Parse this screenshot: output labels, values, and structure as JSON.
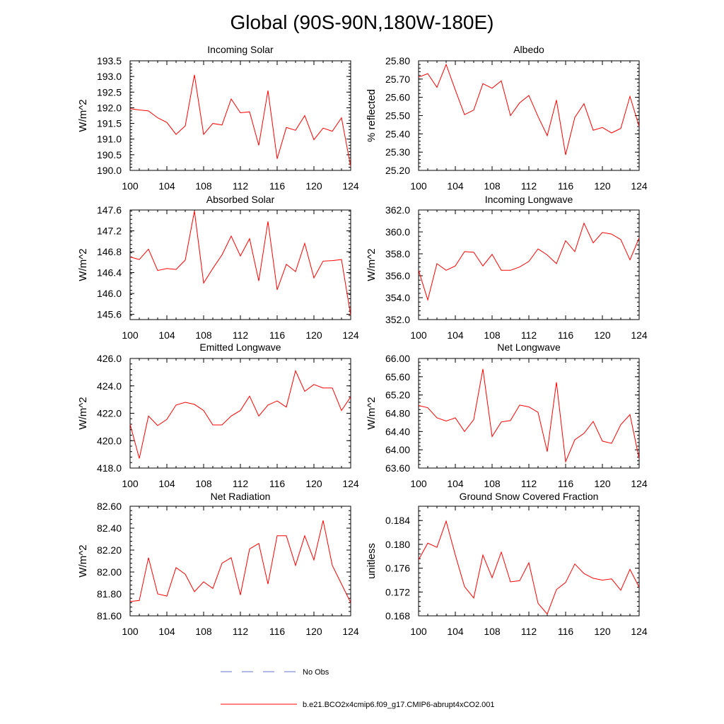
{
  "figure": {
    "title": "Global (90S-90N,180W-180E)",
    "series_color": "#ff0000",
    "obs_color": "#6070c8"
  },
  "legend": {
    "obs_label": "No Obs",
    "model_label": "b.e21.BCO2x4cmip6.f09_g17.CMIP6-abrupt4xCO2.001"
  },
  "chart_data": [
    {
      "type": "line",
      "title": "Incoming Solar",
      "xlabel": "",
      "ylabel": "W/m^2",
      "x": [
        100,
        101,
        102,
        103,
        104,
        105,
        106,
        107,
        108,
        109,
        110,
        111,
        112,
        113,
        114,
        115,
        116,
        117,
        118,
        119,
        120,
        121,
        122,
        123,
        124
      ],
      "values": [
        191.97,
        191.93,
        191.9,
        191.68,
        191.53,
        191.15,
        191.42,
        193.05,
        191.15,
        191.5,
        191.45,
        192.28,
        191.84,
        191.87,
        190.8,
        192.55,
        190.37,
        191.37,
        191.28,
        191.75,
        190.98,
        191.35,
        191.25,
        191.68,
        190.12
      ],
      "ylim": [
        190.0,
        193.5
      ],
      "yticks": [
        "190.0",
        "190.5",
        "191.0",
        "191.5",
        "192.0",
        "192.5",
        "193.0",
        "193.5"
      ],
      "xticks": [
        "100",
        "104",
        "108",
        "112",
        "116",
        "120",
        "124"
      ]
    },
    {
      "type": "line",
      "title": "Albedo",
      "xlabel": "",
      "ylabel": "% reflected",
      "x": [
        100,
        101,
        102,
        103,
        104,
        105,
        106,
        107,
        108,
        109,
        110,
        111,
        112,
        113,
        114,
        115,
        116,
        117,
        118,
        119,
        120,
        121,
        122,
        123,
        124
      ],
      "values": [
        25.71,
        25.73,
        25.655,
        25.78,
        25.64,
        25.505,
        25.53,
        25.675,
        25.65,
        25.69,
        25.5,
        25.57,
        25.61,
        25.495,
        25.39,
        25.585,
        25.285,
        25.49,
        25.565,
        25.42,
        25.435,
        25.405,
        25.43,
        25.605,
        25.44
      ],
      "ylim": [
        25.2,
        25.8
      ],
      "yticks": [
        "25.20",
        "25.30",
        "25.40",
        "25.50",
        "25.60",
        "25.70",
        "25.80"
      ],
      "xticks": [
        "100",
        "104",
        "108",
        "112",
        "116",
        "120",
        "124"
      ]
    },
    {
      "type": "line",
      "title": "Absorbed Solar",
      "xlabel": "",
      "ylabel": "W/m^2",
      "x": [
        100,
        101,
        102,
        103,
        104,
        105,
        106,
        107,
        108,
        109,
        110,
        111,
        112,
        113,
        114,
        115,
        116,
        117,
        118,
        119,
        120,
        121,
        122,
        123,
        124
      ],
      "values": [
        146.7,
        146.65,
        146.85,
        146.44,
        146.48,
        146.46,
        146.64,
        147.58,
        146.2,
        146.48,
        146.74,
        147.1,
        146.72,
        147.05,
        146.24,
        147.38,
        146.07,
        146.56,
        146.42,
        146.96,
        146.3,
        146.62,
        146.63,
        146.65,
        145.58
      ],
      "ylim": [
        145.5,
        147.6
      ],
      "yticks": [
        "145.6",
        "146.0",
        "146.4",
        "146.8",
        "147.2",
        "147.6"
      ],
      "xticks": [
        "100",
        "104",
        "108",
        "112",
        "116",
        "120",
        "124"
      ]
    },
    {
      "type": "line",
      "title": "Incoming Longwave",
      "xlabel": "",
      "ylabel": "W/m^2",
      "x": [
        100,
        101,
        102,
        103,
        104,
        105,
        106,
        107,
        108,
        109,
        110,
        111,
        112,
        113,
        114,
        115,
        116,
        117,
        118,
        119,
        120,
        121,
        122,
        123,
        124
      ],
      "values": [
        356.5,
        353.8,
        357.1,
        356.5,
        356.9,
        358.2,
        358.15,
        356.9,
        357.95,
        356.5,
        356.5,
        356.8,
        357.3,
        358.45,
        357.9,
        357.1,
        359.2,
        358.2,
        360.8,
        359,
        359.95,
        359.8,
        359.3,
        357.45,
        359.45
      ],
      "ylim": [
        352.0,
        362.0
      ],
      "yticks": [
        "352.0",
        "354.0",
        "356.0",
        "358.0",
        "360.0",
        "362.0"
      ],
      "xticks": [
        "100",
        "104",
        "108",
        "112",
        "116",
        "120",
        "124"
      ]
    },
    {
      "type": "line",
      "title": "Emitted Longwave",
      "xlabel": "",
      "ylabel": "W/m^2",
      "x": [
        100,
        101,
        102,
        103,
        104,
        105,
        106,
        107,
        108,
        109,
        110,
        111,
        112,
        113,
        114,
        115,
        116,
        117,
        118,
        119,
        120,
        121,
        122,
        123,
        124
      ],
      "values": [
        421.2,
        418.7,
        421.8,
        421.1,
        421.55,
        422.6,
        422.8,
        422.65,
        422.2,
        421.15,
        421.15,
        421.8,
        422.2,
        423.25,
        421.8,
        422.6,
        422.9,
        422.45,
        425.1,
        423.6,
        424.1,
        423.85,
        423.85,
        422.2,
        423.2
      ],
      "ylim": [
        418.0,
        426.0
      ],
      "yticks": [
        "418.0",
        "420.0",
        "422.0",
        "424.0",
        "426.0"
      ],
      "xticks": [
        "100",
        "104",
        "108",
        "112",
        "116",
        "120",
        "124"
      ]
    },
    {
      "type": "line",
      "title": "Net Longwave",
      "xlabel": "",
      "ylabel": "W/m^2",
      "x": [
        100,
        101,
        102,
        103,
        104,
        105,
        106,
        107,
        108,
        109,
        110,
        111,
        112,
        113,
        114,
        115,
        116,
        117,
        118,
        119,
        120,
        121,
        122,
        123,
        124
      ],
      "values": [
        64.97,
        64.92,
        64.7,
        64.63,
        64.7,
        64.4,
        64.66,
        65.77,
        64.29,
        64.61,
        64.64,
        64.98,
        64.94,
        64.82,
        63.96,
        65.48,
        63.74,
        64.22,
        64.36,
        64.62,
        64.19,
        64.14,
        64.55,
        64.77,
        63.8
      ],
      "ylim": [
        63.6,
        66.0
      ],
      "yticks": [
        "63.60",
        "64.00",
        "64.40",
        "64.80",
        "65.20",
        "65.60",
        "66.00"
      ],
      "xticks": [
        "100",
        "104",
        "108",
        "112",
        "116",
        "120",
        "124"
      ]
    },
    {
      "type": "line",
      "title": "Net Radiation",
      "xlabel": "",
      "ylabel": "W/m^2",
      "x": [
        100,
        101,
        102,
        103,
        104,
        105,
        106,
        107,
        108,
        109,
        110,
        111,
        112,
        113,
        114,
        115,
        116,
        117,
        118,
        119,
        120,
        121,
        122,
        123,
        124
      ],
      "values": [
        81.73,
        81.74,
        82.13,
        81.8,
        81.78,
        82.04,
        81.98,
        81.82,
        81.91,
        81.85,
        82.08,
        82.13,
        81.79,
        82.21,
        82.26,
        81.89,
        82.33,
        82.33,
        82.06,
        82.33,
        82.11,
        82.47,
        82.06,
        81.89,
        81.72
      ],
      "ylim": [
        81.6,
        82.6
      ],
      "yticks": [
        "81.60",
        "81.80",
        "82.00",
        "82.20",
        "82.40",
        "82.60"
      ],
      "xticks": [
        "100",
        "104",
        "108",
        "112",
        "116",
        "120",
        "124"
      ]
    },
    {
      "type": "line",
      "title": "Ground Snow Covered Fraction",
      "xlabel": "",
      "ylabel": "unitless",
      "x": [
        100,
        101,
        102,
        103,
        104,
        105,
        106,
        107,
        108,
        109,
        110,
        111,
        112,
        113,
        114,
        115,
        116,
        117,
        118,
        119,
        120,
        121,
        122,
        123,
        124
      ],
      "values": [
        0.1774,
        0.1802,
        0.1795,
        0.1839,
        0.1782,
        0.1729,
        0.171,
        0.1782,
        0.1744,
        0.1787,
        0.1737,
        0.1739,
        0.1769,
        0.1701,
        0.1683,
        0.1724,
        0.1736,
        0.1767,
        0.1751,
        0.1743,
        0.174,
        0.1742,
        0.1723,
        0.1758,
        0.1728
      ],
      "ylim": [
        0.168,
        0.1864
      ],
      "yticks": [
        "0.168",
        "0.172",
        "0.176",
        "0.180",
        "0.184"
      ],
      "xticks": [
        "100",
        "104",
        "108",
        "112",
        "116",
        "120",
        "124"
      ]
    }
  ]
}
